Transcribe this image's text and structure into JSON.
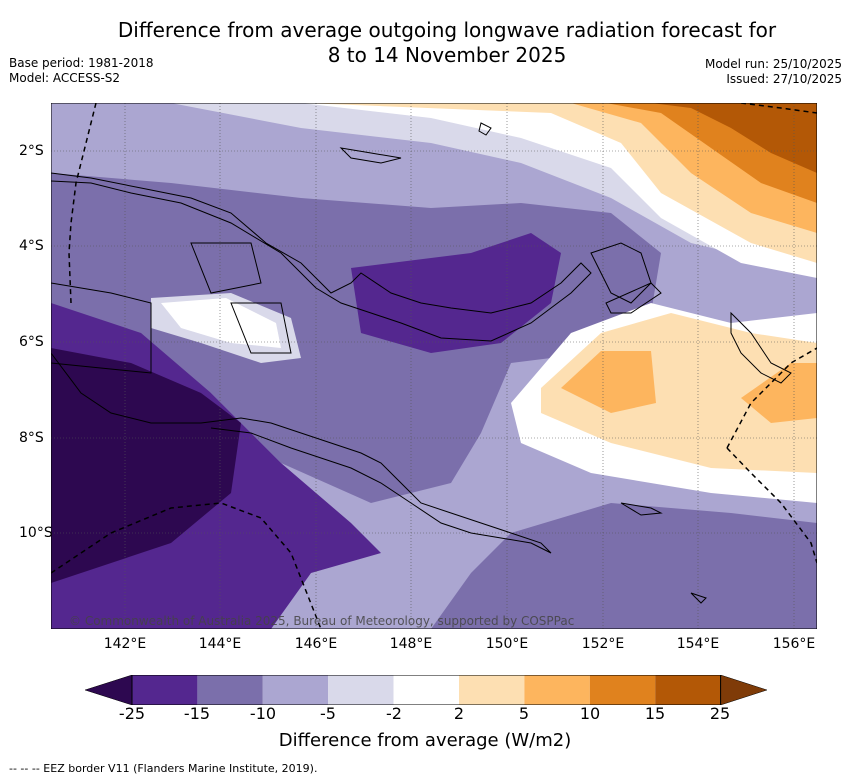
{
  "title_line1": "Difference from average outgoing longwave radiation forecast for",
  "title_line2": "8 to 14 November 2025",
  "base_period": "Base period: 1981-2018",
  "model": "Model: ACCESS-S2",
  "model_run": "Model run: 25/10/2025",
  "issued": "Issued: 27/10/2025",
  "x_ticks": [
    "142°E",
    "144°E",
    "146°E",
    "148°E",
    "150°E",
    "152°E",
    "154°E",
    "156°E"
  ],
  "y_ticks": [
    "2°S",
    "4°S",
    "6°S",
    "8°S",
    "10°S"
  ],
  "copyright": "© Commonwealth of Australia 2025, Bureau of Meteorology, supported by COSPPac",
  "colorbar": {
    "labels": [
      "-25",
      "-15",
      "-10",
      "-5",
      "-2",
      "2",
      "5",
      "10",
      "15",
      "25"
    ],
    "title": "Difference from average (W/m2)",
    "colors": [
      "#2d0850",
      "#54278f",
      "#7b6fab",
      "#aba6d1",
      "#d9d9ea",
      "#ffffff",
      "#fddfb2",
      "#fdb55e",
      "#e0821e",
      "#b35806",
      "#7f3b08"
    ]
  },
  "eez_note": "-- -- -- EEZ border V11 (Flanders Marine Institute, 2019)."
}
